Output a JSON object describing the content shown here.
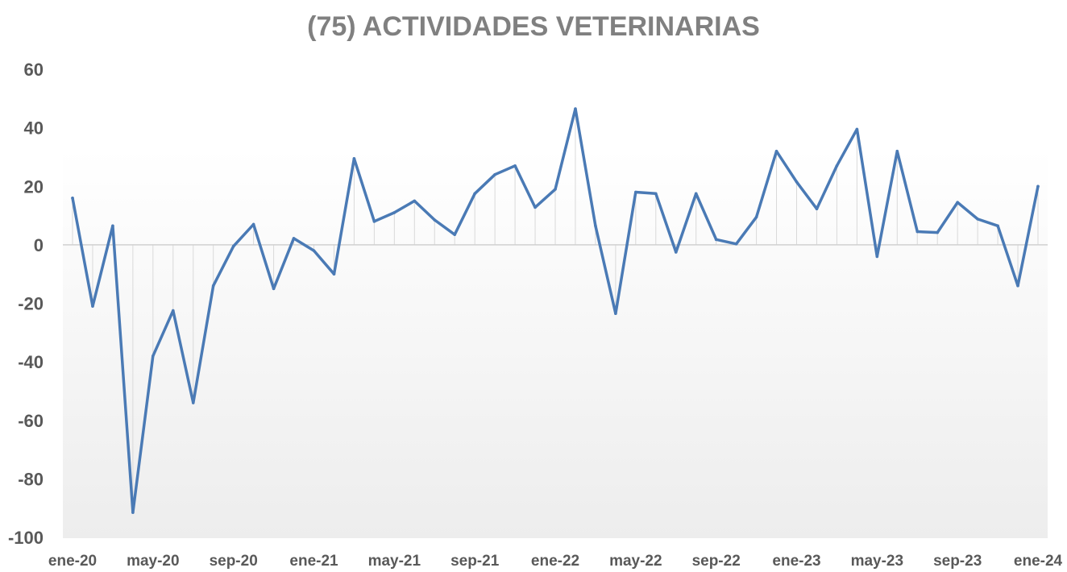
{
  "chart_data": {
    "type": "line",
    "title": "(75) ACTIVIDADES VETERINARIAS",
    "xlabel": "",
    "ylabel": "",
    "ylim": [
      -100,
      60
    ],
    "yticks": [
      60,
      40,
      20,
      0,
      -20,
      -40,
      -60,
      -80,
      -100
    ],
    "categories": [
      "ene-20",
      "feb-20",
      "mar-20",
      "abr-20",
      "may-20",
      "jun-20",
      "jul-20",
      "ago-20",
      "sep-20",
      "oct-20",
      "nov-20",
      "dic-20",
      "ene-21",
      "feb-21",
      "mar-21",
      "abr-21",
      "may-21",
      "jun-21",
      "jul-21",
      "ago-21",
      "sep-21",
      "oct-21",
      "nov-21",
      "dic-21",
      "ene-22",
      "feb-22",
      "mar-22",
      "abr-22",
      "may-22",
      "jun-22",
      "jul-22",
      "ago-22",
      "sep-22",
      "oct-22",
      "nov-22",
      "dic-22",
      "ene-23",
      "feb-23",
      "mar-23",
      "abr-23",
      "may-23",
      "jun-23",
      "jul-23",
      "ago-23",
      "sep-23",
      "oct-23",
      "nov-23",
      "dic-23",
      "ene-24"
    ],
    "xtick_labels": [
      "ene-20",
      "may-20",
      "sep-20",
      "ene-21",
      "may-21",
      "sep-21",
      "ene-22",
      "may-22",
      "sep-22",
      "ene-23",
      "may-23",
      "sep-23",
      "ene-24"
    ],
    "xtick_every": 4,
    "series": [
      {
        "values": [
          16,
          -21,
          6.5,
          -91.5,
          -38,
          -22.5,
          -54,
          -14,
          -0.5,
          7,
          -15,
          2.2,
          -2,
          -10,
          29.5,
          8,
          11,
          15,
          8.5,
          3.5,
          17.5,
          24,
          27,
          12.8,
          19,
          46.5,
          6.5,
          -23.5,
          18,
          17.5,
          -2.5,
          17.5,
          1.8,
          0.3,
          9.5,
          32,
          21.5,
          12.3,
          27,
          39.5,
          -4,
          32,
          4.5,
          4.2,
          14.5,
          8.8,
          6.5,
          -14,
          20
        ],
        "color": "#4a7ab5"
      }
    ],
    "grid": false,
    "drop_lines": true,
    "legend": "none"
  }
}
